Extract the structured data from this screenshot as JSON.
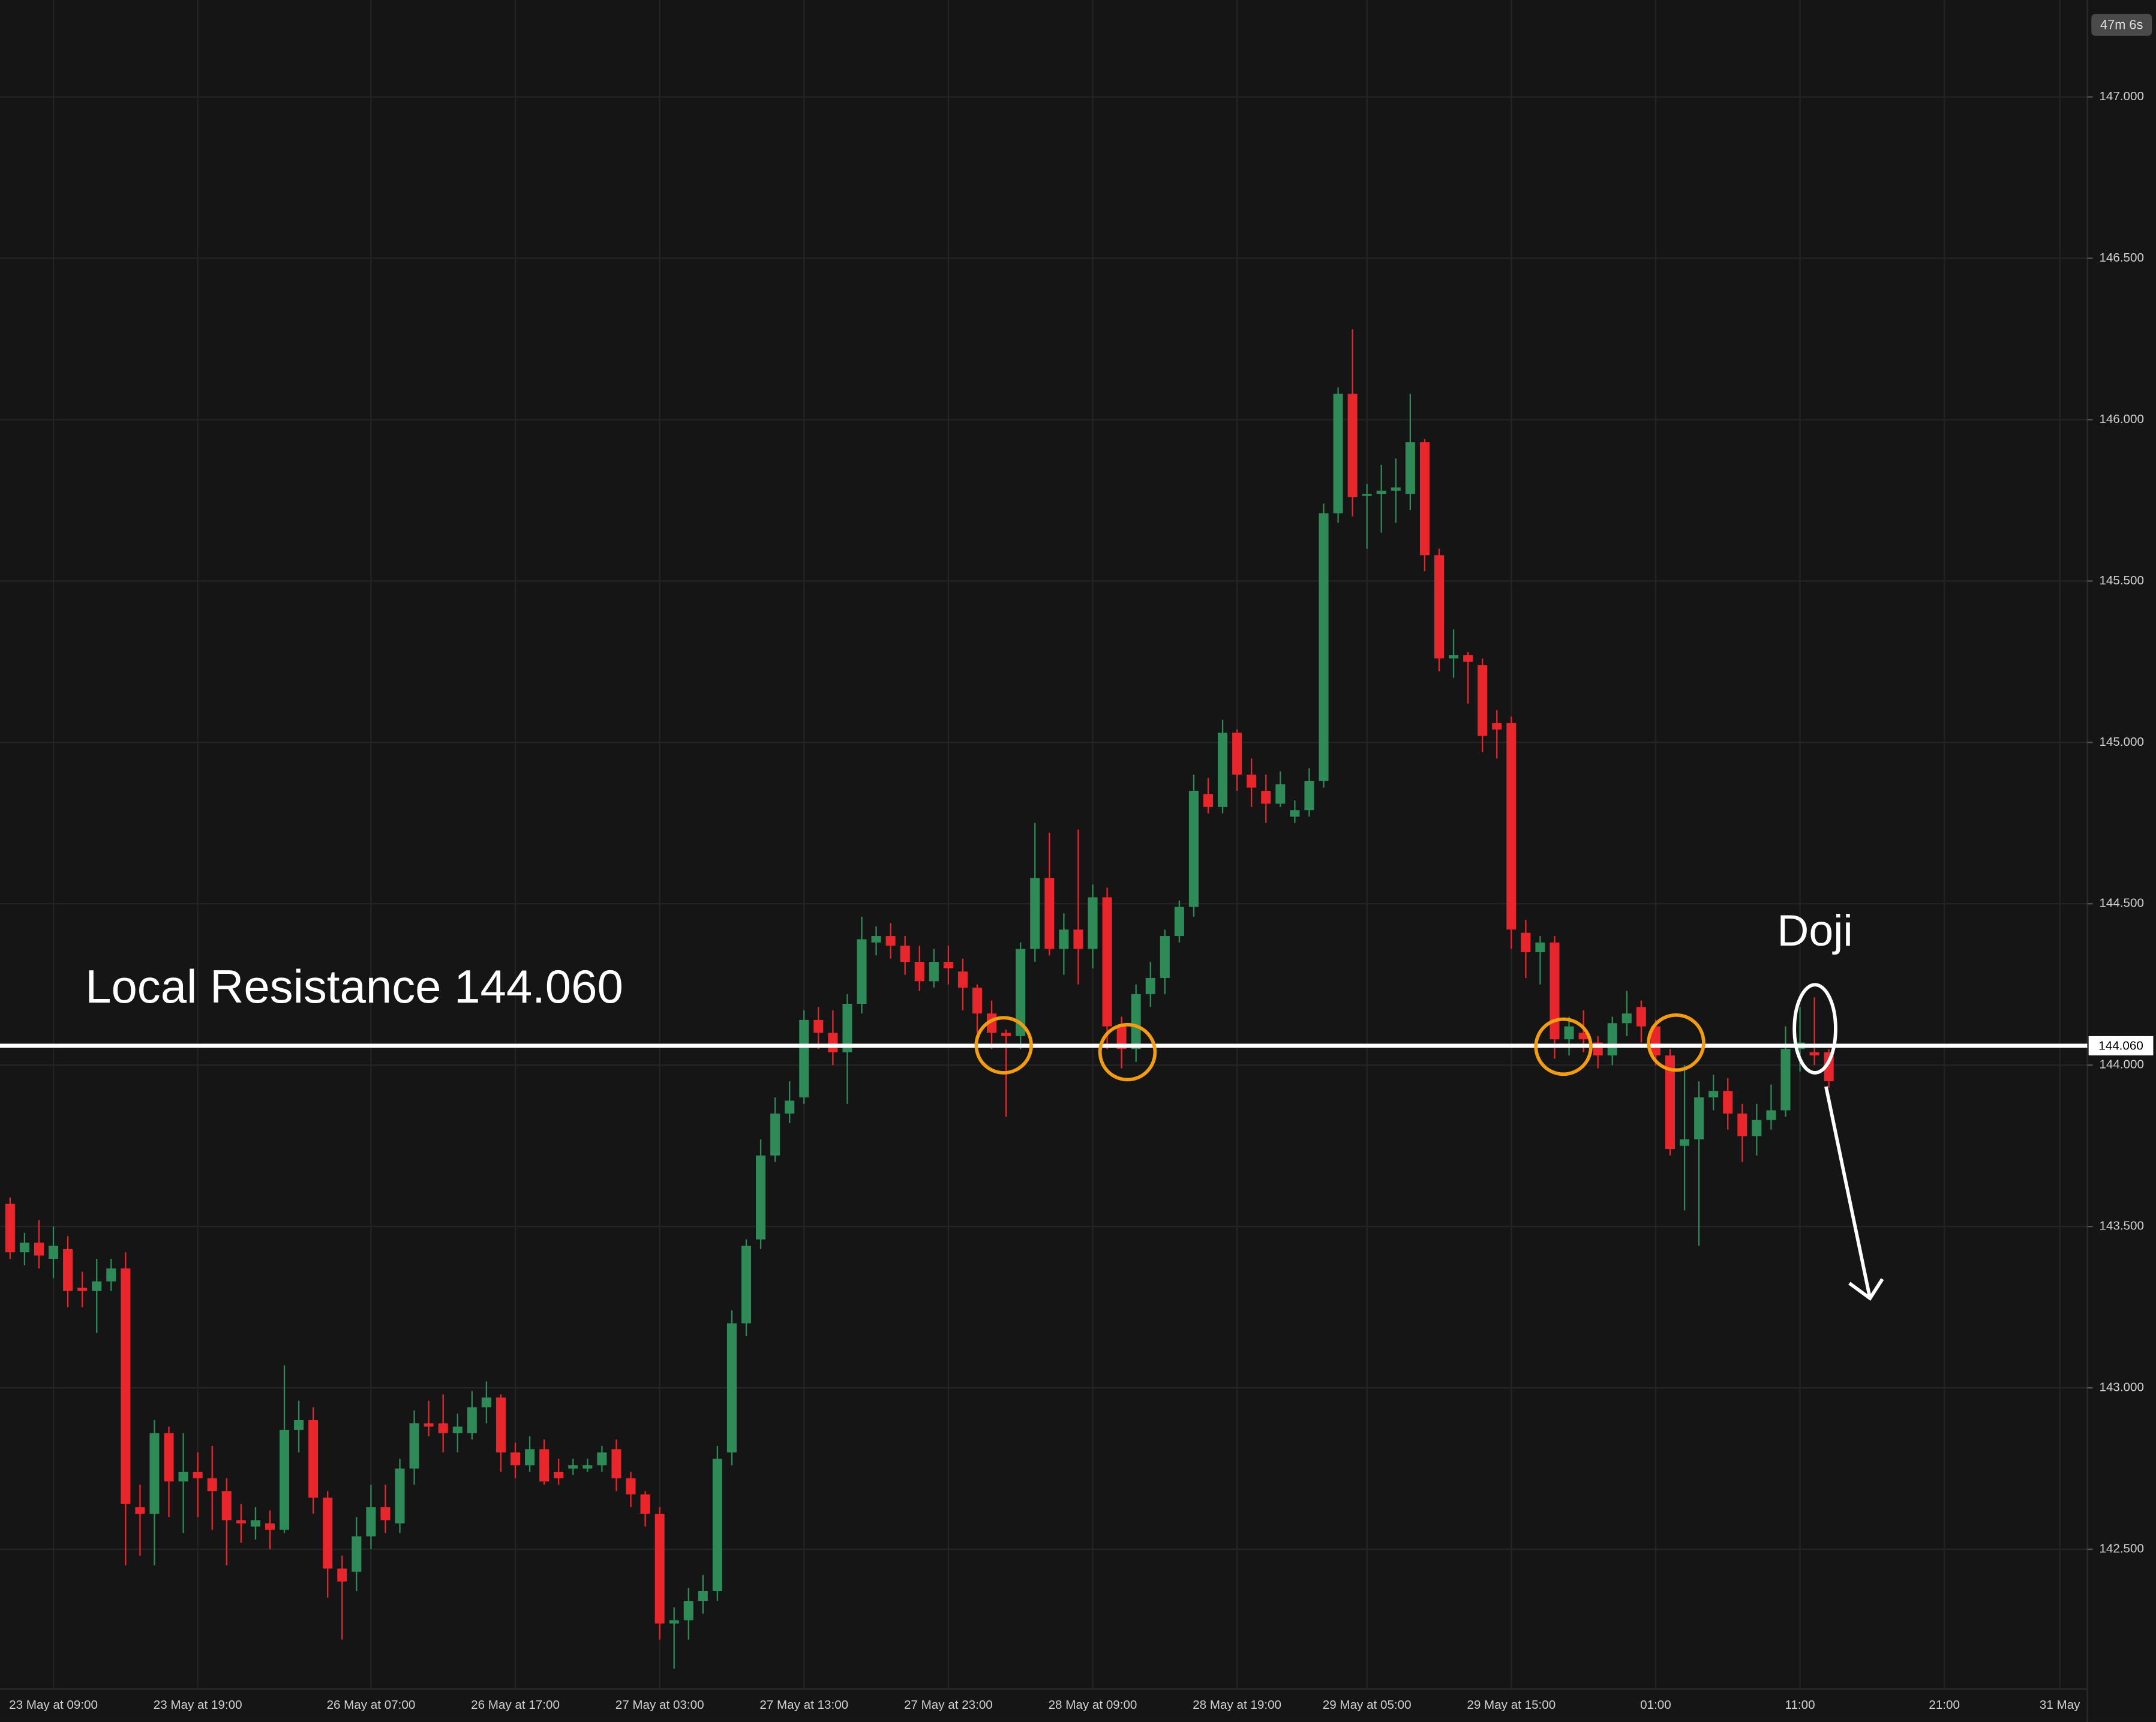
{
  "chart_data": {
    "type": "candlestick",
    "countdown": "47m 6s",
    "annotation": "Local Resistance 144.060",
    "doji_label": "Doji",
    "resistance": {
      "value": 144.06,
      "label": "144.060"
    },
    "up_color": "#2e8b57",
    "down_color": "#e8262c",
    "grid": true,
    "xlim": [
      -0.7,
      143.9
    ],
    "ylim": [
      142.08,
      147.3
    ],
    "xticks": [
      {
        "value": 3,
        "label": "23 May at 09:00"
      },
      {
        "value": 13,
        "label": "23 May at 19:00"
      },
      {
        "value": 25,
        "label": "26 May at 07:00"
      },
      {
        "value": 35,
        "label": "26 May at 17:00"
      },
      {
        "value": 45,
        "label": "27 May at 03:00"
      },
      {
        "value": 55,
        "label": "27 May at 13:00"
      },
      {
        "value": 65,
        "label": "27 May at 23:00"
      },
      {
        "value": 75,
        "label": "28 May at 09:00"
      },
      {
        "value": 85,
        "label": "28 May at 19:00"
      },
      {
        "value": 94,
        "label": "29 May at 05:00"
      },
      {
        "value": 104,
        "label": "29 May at 15:00"
      },
      {
        "value": 114,
        "label": "01:00"
      },
      {
        "value": 124,
        "label": "11:00"
      },
      {
        "value": 134,
        "label": "21:00"
      },
      {
        "value": 142,
        "label": "31 May"
      }
    ],
    "yticks": [
      {
        "value": 142.5,
        "label": "142.500"
      },
      {
        "value": 143,
        "label": "143.000"
      },
      {
        "value": 143.5,
        "label": "143.500"
      },
      {
        "value": 144,
        "label": "144.000"
      },
      {
        "value": 144.5,
        "label": "144.500"
      },
      {
        "value": 145,
        "label": "145.000"
      },
      {
        "value": 145.5,
        "label": "145.500"
      },
      {
        "value": 146,
        "label": "146.000"
      },
      {
        "value": 146.5,
        "label": "146.500"
      },
      {
        "value": 147,
        "label": "147.000"
      }
    ],
    "x": [
      0,
      1,
      2,
      3,
      4,
      5,
      6,
      7,
      8,
      9,
      10,
      11,
      12,
      13,
      14,
      15,
      16,
      17,
      18,
      19,
      20,
      21,
      22,
      23,
      24,
      25,
      26,
      27,
      28,
      29,
      30,
      31,
      32,
      33,
      34,
      35,
      36,
      37,
      38,
      39,
      40,
      41,
      42,
      43,
      44,
      45,
      46,
      47,
      48,
      49,
      50,
      51,
      52,
      53,
      54,
      55,
      56,
      57,
      58,
      59,
      60,
      61,
      62,
      63,
      64,
      65,
      66,
      67,
      68,
      69,
      70,
      71,
      72,
      73,
      74,
      75,
      76,
      77,
      78,
      79,
      80,
      81,
      82,
      83,
      84,
      85,
      86,
      87,
      88,
      89,
      90,
      91,
      92,
      93,
      94,
      95,
      96,
      97,
      98,
      99,
      100,
      101,
      102,
      103,
      104,
      105,
      106,
      107,
      108,
      109,
      110,
      111,
      112,
      113,
      114,
      115,
      116,
      117,
      118,
      119,
      120,
      121,
      122,
      123,
      124,
      125,
      126
    ],
    "open": [
      143.57,
      143.42,
      143.45,
      143.4,
      143.43,
      143.31,
      143.3,
      143.33,
      143.37,
      142.63,
      142.61,
      142.86,
      142.71,
      142.74,
      142.72,
      142.68,
      142.59,
      142.57,
      142.58,
      142.56,
      142.87,
      142.9,
      142.66,
      142.44,
      142.43,
      142.54,
      142.63,
      142.58,
      142.75,
      142.89,
      142.89,
      142.86,
      142.86,
      142.94,
      142.97,
      142.8,
      142.76,
      142.81,
      142.74,
      142.75,
      142.75,
      142.76,
      142.81,
      142.72,
      142.67,
      142.61,
      142.27,
      142.28,
      142.34,
      142.37,
      142.8,
      143.2,
      143.46,
      143.72,
      143.85,
      143.9,
      144.14,
      144.1,
      144.04,
      144.19,
      144.38,
      144.4,
      144.37,
      144.32,
      144.26,
      144.32,
      144.29,
      144.24,
      144.16,
      144.1,
      144.09,
      144.36,
      144.58,
      144.36,
      144.42,
      144.36,
      144.52,
      144.12,
      144.05,
      144.22,
      144.27,
      144.4,
      144.49,
      144.84,
      144.8,
      145.03,
      144.9,
      144.85,
      144.81,
      144.77,
      144.79,
      144.88,
      145.71,
      146.08,
      145.77,
      145.77,
      145.78,
      145.77,
      145.93,
      145.58,
      145.26,
      145.27,
      145.24,
      145.06,
      145.06,
      144.41,
      144.35,
      144.38,
      144.08,
      144.1,
      144.07,
      144.03,
      144.13,
      144.18,
      144.12,
      144.03,
      143.75,
      143.77,
      143.9,
      143.92,
      143.85,
      143.78,
      143.83,
      143.86,
      144.05,
      144.04,
      144.04
    ],
    "high": [
      143.59,
      143.48,
      143.52,
      143.5,
      143.47,
      143.36,
      143.4,
      143.4,
      143.42,
      142.7,
      142.9,
      142.88,
      142.86,
      142.8,
      142.82,
      142.72,
      142.64,
      142.63,
      142.62,
      143.07,
      142.96,
      142.94,
      142.68,
      142.48,
      142.6,
      142.7,
      142.7,
      142.78,
      142.93,
      142.96,
      142.98,
      142.92,
      142.99,
      143.02,
      142.98,
      142.83,
      142.85,
      142.84,
      142.78,
      142.78,
      142.78,
      142.82,
      142.84,
      142.74,
      142.68,
      142.63,
      142.32,
      142.38,
      142.42,
      142.82,
      143.24,
      143.46,
      143.77,
      143.9,
      143.95,
      144.17,
      144.18,
      144.17,
      144.22,
      144.46,
      144.43,
      144.44,
      144.4,
      144.37,
      144.36,
      144.37,
      144.33,
      144.25,
      144.2,
      144.11,
      144.38,
      144.75,
      144.72,
      144.47,
      144.73,
      144.56,
      144.55,
      144.15,
      144.25,
      144.32,
      144.42,
      144.51,
      144.9,
      144.89,
      145.07,
      145.04,
      144.95,
      144.9,
      144.91,
      144.82,
      144.92,
      145.74,
      146.1,
      146.28,
      145.8,
      145.86,
      145.88,
      146.08,
      145.94,
      145.6,
      145.35,
      145.28,
      145.26,
      145.1,
      145.08,
      144.45,
      144.4,
      144.4,
      144.15,
      144.17,
      144.09,
      144.15,
      144.23,
      144.2,
      144.14,
      144.05,
      144.0,
      143.95,
      143.97,
      143.96,
      143.88,
      143.88,
      143.94,
      144.12,
      144.18,
      144.21,
      144.05
    ],
    "low": [
      143.4,
      143.38,
      143.37,
      143.34,
      143.25,
      143.25,
      143.17,
      143.3,
      142.45,
      142.48,
      142.45,
      142.6,
      142.55,
      142.6,
      142.56,
      142.45,
      142.52,
      142.53,
      142.5,
      142.55,
      142.8,
      142.61,
      142.35,
      142.22,
      142.37,
      142.5,
      142.55,
      142.55,
      142.7,
      142.85,
      142.8,
      142.8,
      142.84,
      142.89,
      142.74,
      142.72,
      142.74,
      142.7,
      142.7,
      142.73,
      142.74,
      142.74,
      142.68,
      142.63,
      142.57,
      142.22,
      142.13,
      142.22,
      142.3,
      142.34,
      142.76,
      143.16,
      143.43,
      143.7,
      143.82,
      143.88,
      144.05,
      144.0,
      143.88,
      144.16,
      144.34,
      144.33,
      144.28,
      144.23,
      144.24,
      144.25,
      144.17,
      144.1,
      144.05,
      143.84,
      144.05,
      144.32,
      144.34,
      144.28,
      144.25,
      144.3,
      144.05,
      143.99,
      144.01,
      144.18,
      144.22,
      144.38,
      144.46,
      144.78,
      144.78,
      144.85,
      144.8,
      144.75,
      144.8,
      144.75,
      144.77,
      144.86,
      145.68,
      145.7,
      145.6,
      145.65,
      145.68,
      145.72,
      145.53,
      145.22,
      145.2,
      145.12,
      144.97,
      144.95,
      144.36,
      144.27,
      144.25,
      144.02,
      144.03,
      144.04,
      143.99,
      144.0,
      144.09,
      144.07,
      144.0,
      143.72,
      143.55,
      143.44,
      143.86,
      143.8,
      143.7,
      143.72,
      143.8,
      143.84,
      143.98,
      144.0,
      143.93
    ],
    "close": [
      143.42,
      143.45,
      143.41,
      143.44,
      143.3,
      143.3,
      143.33,
      143.37,
      142.64,
      142.61,
      142.86,
      142.71,
      142.74,
      142.72,
      142.68,
      142.59,
      142.58,
      142.59,
      142.56,
      142.87,
      142.9,
      142.66,
      142.44,
      142.4,
      142.54,
      142.63,
      142.59,
      142.75,
      142.89,
      142.88,
      142.86,
      142.88,
      142.94,
      142.97,
      142.8,
      142.76,
      142.81,
      142.71,
      142.72,
      142.76,
      142.76,
      142.8,
      142.72,
      142.67,
      142.61,
      142.27,
      142.28,
      142.34,
      142.37,
      142.78,
      143.2,
      143.44,
      143.72,
      143.85,
      143.89,
      144.14,
      144.1,
      144.04,
      144.19,
      144.39,
      144.4,
      144.37,
      144.32,
      144.26,
      144.32,
      144.3,
      144.24,
      144.16,
      144.1,
      144.09,
      144.36,
      144.58,
      144.36,
      144.42,
      144.36,
      144.52,
      144.12,
      144.05,
      144.22,
      144.27,
      144.4,
      144.49,
      144.85,
      144.8,
      145.03,
      144.9,
      144.86,
      144.81,
      144.87,
      144.79,
      144.88,
      145.71,
      146.08,
      145.76,
      145.77,
      145.78,
      145.79,
      145.93,
      145.58,
      145.26,
      145.27,
      145.25,
      145.02,
      145.04,
      144.42,
      144.35,
      144.38,
      144.08,
      144.12,
      144.08,
      144.03,
      144.13,
      144.16,
      144.12,
      144.03,
      143.74,
      143.77,
      143.9,
      143.92,
      143.85,
      143.78,
      143.83,
      143.86,
      144.05,
      144.07,
      144.03,
      143.95
    ]
  }
}
